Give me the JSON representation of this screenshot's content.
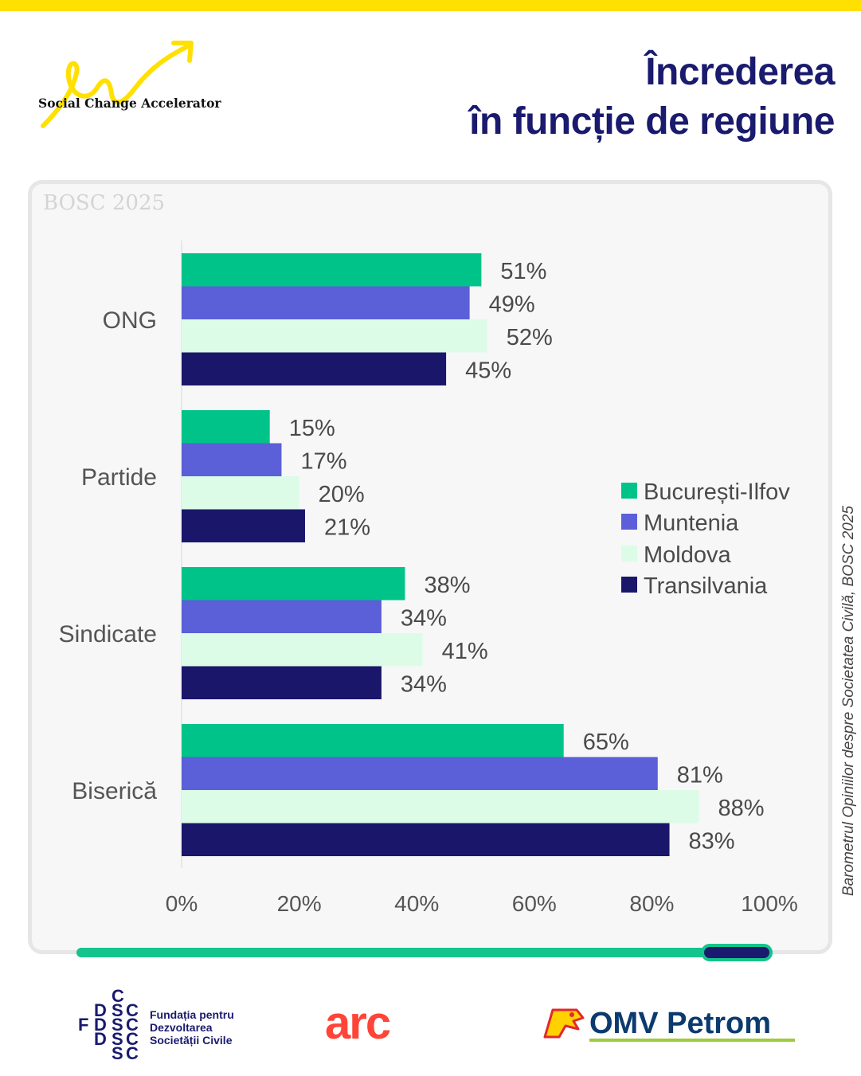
{
  "header": {
    "brand_name": "Social Change Accelerator",
    "title_line1": "Încrederea",
    "title_line2": "în funcție de regiune"
  },
  "card": {
    "watermark": "BOSC 2025"
  },
  "source_note": "Barometrul Opiniilor despre Societatea Civilă, BOSC 2025",
  "colors": {
    "accent_yellow": "#ffe000",
    "navy": "#1a1a6e",
    "green": "#14c48d"
  },
  "chart_data": {
    "type": "bar",
    "orientation": "horizontal",
    "categories": [
      "ONG",
      "Partide",
      "Sindicate",
      "Biserică"
    ],
    "series": [
      {
        "name": "București-Ilfov",
        "color": "#00c389",
        "values": [
          51,
          15,
          38,
          65
        ]
      },
      {
        "name": "Muntenia",
        "color": "#5b5fd8",
        "values": [
          49,
          17,
          34,
          81
        ]
      },
      {
        "name": "Moldova",
        "color": "#dcfce7",
        "values": [
          52,
          20,
          41,
          88
        ]
      },
      {
        "name": "Transilvania",
        "color": "#1a176b",
        "values": [
          45,
          21,
          34,
          83
        ]
      }
    ],
    "value_suffix": "%",
    "xlim": [
      0,
      100
    ],
    "xticks": [
      0,
      20,
      40,
      60,
      80,
      100
    ],
    "xtick_labels": [
      "0%",
      "20%",
      "40%",
      "60%",
      "80%",
      "100%"
    ],
    "legend_position": "right-middle",
    "grid": false
  },
  "footer": {
    "fdsc_line1": "Fundația pentru",
    "fdsc_line2": "Dezvoltarea",
    "fdsc_line3": "Societății Civile",
    "arc_logo": "arc",
    "omv_logo": "OMV Petrom"
  }
}
